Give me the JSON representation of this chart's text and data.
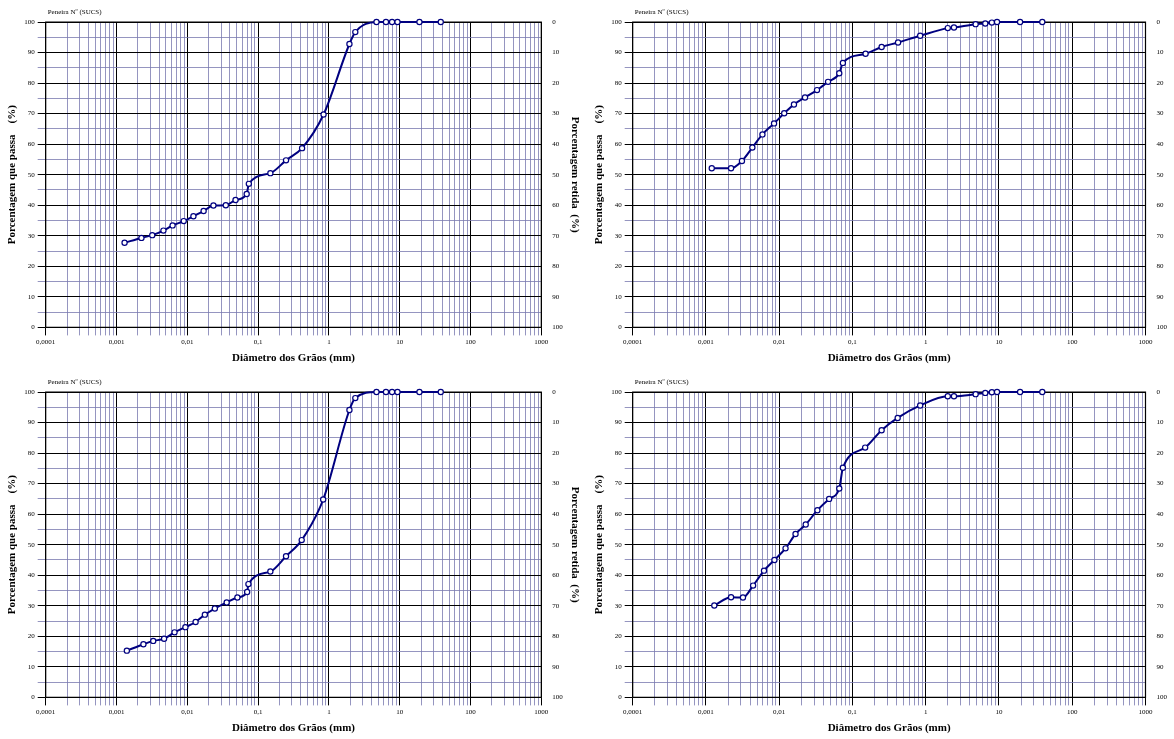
{
  "chart_data": [
    {
      "type": "line",
      "xlabel": "Diâmetro dos Grãos (mm)",
      "ylabel": "Porcentagem que passa    (%)",
      "y2label": "Porcentagem retida  (%)",
      "annotations": [
        "Peneira Nº (SUCS)"
      ],
      "log": "x",
      "grid": true,
      "legend": false,
      "marker": "circle",
      "line_style": "solid",
      "color": "#000080",
      "x": [
        0.0013,
        0.00225,
        0.0032,
        0.0046,
        0.0062,
        0.0089,
        0.0122,
        0.017,
        0.0234,
        0.035,
        0.048,
        0.069,
        0.074,
        0.149,
        0.248,
        0.418,
        0.84,
        1.95,
        2.36,
        4.7,
        6.4,
        7.8,
        9.3,
        19,
        38
      ],
      "values": [
        27.7,
        29.3,
        30.2,
        31.7,
        33.4,
        34.8,
        36.4,
        38.1,
        39.9,
        40.0,
        41.7,
        43.7,
        47.0,
        50.5,
        54.7,
        58.7,
        69.7,
        92.8,
        96.7,
        100,
        100,
        100,
        100,
        100,
        100
      ],
      "xlim": [
        0.0001,
        1000
      ],
      "ylim": [
        0,
        100
      ],
      "y2lim": [
        100,
        0
      ],
      "xticks": [
        {
          "value": 0.0001,
          "label": "0,0001"
        },
        {
          "value": 0.0002,
          "label": null
        },
        {
          "value": 0.0003,
          "label": null
        },
        {
          "value": 0.0004,
          "label": null
        },
        {
          "value": 0.0005,
          "label": null
        },
        {
          "value": 0.0006,
          "label": null
        },
        {
          "value": 0.0007,
          "label": null
        },
        {
          "value": 0.0008,
          "label": null
        },
        {
          "value": 0.0009,
          "label": null
        },
        {
          "value": 0.001,
          "label": "0,001"
        },
        {
          "value": 0.002,
          "label": null
        },
        {
          "value": 0.003,
          "label": null
        },
        {
          "value": 0.004,
          "label": null
        },
        {
          "value": 0.005,
          "label": null
        },
        {
          "value": 0.006,
          "label": null
        },
        {
          "value": 0.007,
          "label": null
        },
        {
          "value": 0.008,
          "label": null
        },
        {
          "value": 0.009,
          "label": null
        },
        {
          "value": 0.01,
          "label": "0,01"
        },
        {
          "value": 0.02,
          "label": null
        },
        {
          "value": 0.03,
          "label": null
        },
        {
          "value": 0.04,
          "label": null
        },
        {
          "value": 0.05,
          "label": null
        },
        {
          "value": 0.06,
          "label": null
        },
        {
          "value": 0.07,
          "label": null
        },
        {
          "value": 0.08,
          "label": null
        },
        {
          "value": 0.09,
          "label": null
        },
        {
          "value": 0.1,
          "label": "0,1"
        },
        {
          "value": 0.2,
          "label": null
        },
        {
          "value": 0.3,
          "label": null
        },
        {
          "value": 0.4,
          "label": null
        },
        {
          "value": 0.5,
          "label": null
        },
        {
          "value": 0.6,
          "label": null
        },
        {
          "value": 0.7,
          "label": null
        },
        {
          "value": 0.8,
          "label": null
        },
        {
          "value": 0.9,
          "label": null
        },
        1,
        {
          "value": 2,
          "label": null
        },
        {
          "value": 3,
          "label": null
        },
        {
          "value": 4,
          "label": null
        },
        {
          "value": 5,
          "label": null
        },
        {
          "value": 6,
          "label": null
        },
        {
          "value": 7,
          "label": null
        },
        {
          "value": 8,
          "label": null
        },
        {
          "value": 9,
          "label": null
        },
        10,
        {
          "value": 20,
          "label": null
        },
        {
          "value": 30,
          "label": null
        },
        {
          "value": 40,
          "label": null
        },
        {
          "value": 50,
          "label": null
        },
        {
          "value": 60,
          "label": null
        },
        {
          "value": 70,
          "label": null
        },
        {
          "value": 80,
          "label": null
        },
        {
          "value": 90,
          "label": null
        },
        100,
        {
          "value": 200,
          "label": null
        },
        {
          "value": 300,
          "label": null
        },
        {
          "value": 400,
          "label": null
        },
        {
          "value": 500,
          "label": null
        },
        {
          "value": 600,
          "label": null
        },
        {
          "value": 700,
          "label": null
        },
        {
          "value": 800,
          "label": null
        },
        {
          "value": 900,
          "label": null
        },
        1000
      ],
      "yticks": [
        0,
        {
          "value": 5,
          "label": null
        },
        10,
        {
          "value": 15,
          "label": null
        },
        20,
        {
          "value": 25,
          "label": null
        },
        30,
        {
          "value": 35,
          "label": null
        },
        40,
        {
          "value": 45,
          "label": null
        },
        50,
        {
          "value": 55,
          "label": null
        },
        60,
        {
          "value": 65,
          "label": null
        },
        70,
        {
          "value": 75,
          "label": null
        },
        80,
        {
          "value": 85,
          "label": null
        },
        90,
        {
          "value": 95,
          "label": null
        },
        100
      ],
      "y2ticks": [
        0,
        10,
        20,
        30,
        40,
        50,
        60,
        70,
        80,
        90,
        100
      ]
    },
    {
      "type": "line",
      "xlabel": "Diâmetro dos Grãos (mm)",
      "ylabel": "Porcentagem que passa    (%)",
      "annotations": [
        "Peneira Nº (SUCS)"
      ],
      "log": "x",
      "grid": true,
      "legend": false,
      "marker": "circle",
      "line_style": "solid",
      "color": "#000080",
      "x": [
        0.0012,
        0.0022,
        0.0031,
        0.0043,
        0.0059,
        0.0085,
        0.0117,
        0.0159,
        0.0225,
        0.0328,
        0.0464,
        0.066,
        0.074,
        0.151,
        0.25,
        0.419,
        0.84,
        2.0,
        2.43,
        4.8,
        6.5,
        8.0,
        9.4,
        19.4,
        39
      ],
      "values": [
        52.1,
        52.1,
        54.5,
        58.9,
        63.2,
        66.8,
        70.1,
        73.0,
        75.3,
        77.7,
        80.4,
        83.2,
        86.6,
        89.6,
        91.8,
        93.3,
        95.5,
        98.0,
        98.2,
        99.3,
        99.5,
        99.8,
        100,
        100,
        100
      ],
      "xlim": [
        0.0001,
        1000
      ],
      "ylim": [
        0,
        100
      ],
      "y2lim": [
        100,
        0
      ],
      "xticks": [
        {
          "value": 0.0001,
          "label": "0,0001"
        },
        {
          "value": 0.0002,
          "label": null
        },
        {
          "value": 0.0003,
          "label": null
        },
        {
          "value": 0.0004,
          "label": null
        },
        {
          "value": 0.0005,
          "label": null
        },
        {
          "value": 0.0006,
          "label": null
        },
        {
          "value": 0.0007,
          "label": null
        },
        {
          "value": 0.0008,
          "label": null
        },
        {
          "value": 0.0009,
          "label": null
        },
        {
          "value": 0.001,
          "label": "0,001"
        },
        {
          "value": 0.002,
          "label": null
        },
        {
          "value": 0.003,
          "label": null
        },
        {
          "value": 0.004,
          "label": null
        },
        {
          "value": 0.005,
          "label": null
        },
        {
          "value": 0.006,
          "label": null
        },
        {
          "value": 0.007,
          "label": null
        },
        {
          "value": 0.008,
          "label": null
        },
        {
          "value": 0.009,
          "label": null
        },
        {
          "value": 0.01,
          "label": "0,01"
        },
        {
          "value": 0.02,
          "label": null
        },
        {
          "value": 0.03,
          "label": null
        },
        {
          "value": 0.04,
          "label": null
        },
        {
          "value": 0.05,
          "label": null
        },
        {
          "value": 0.06,
          "label": null
        },
        {
          "value": 0.07,
          "label": null
        },
        {
          "value": 0.08,
          "label": null
        },
        {
          "value": 0.09,
          "label": null
        },
        {
          "value": 0.1,
          "label": "0,1"
        },
        {
          "value": 0.2,
          "label": null
        },
        {
          "value": 0.3,
          "label": null
        },
        {
          "value": 0.4,
          "label": null
        },
        {
          "value": 0.5,
          "label": null
        },
        {
          "value": 0.6,
          "label": null
        },
        {
          "value": 0.7,
          "label": null
        },
        {
          "value": 0.8,
          "label": null
        },
        {
          "value": 0.9,
          "label": null
        },
        1,
        {
          "value": 2,
          "label": null
        },
        {
          "value": 3,
          "label": null
        },
        {
          "value": 4,
          "label": null
        },
        {
          "value": 5,
          "label": null
        },
        {
          "value": 6,
          "label": null
        },
        {
          "value": 7,
          "label": null
        },
        {
          "value": 8,
          "label": null
        },
        {
          "value": 9,
          "label": null
        },
        10,
        {
          "value": 20,
          "label": null
        },
        {
          "value": 30,
          "label": null
        },
        {
          "value": 40,
          "label": null
        },
        {
          "value": 50,
          "label": null
        },
        {
          "value": 60,
          "label": null
        },
        {
          "value": 70,
          "label": null
        },
        {
          "value": 80,
          "label": null
        },
        {
          "value": 90,
          "label": null
        },
        100,
        {
          "value": 200,
          "label": null
        },
        {
          "value": 300,
          "label": null
        },
        {
          "value": 400,
          "label": null
        },
        {
          "value": 500,
          "label": null
        },
        {
          "value": 600,
          "label": null
        },
        {
          "value": 700,
          "label": null
        },
        {
          "value": 800,
          "label": null
        },
        {
          "value": 900,
          "label": null
        },
        1000
      ],
      "yticks": [
        0,
        {
          "value": 5,
          "label": null
        },
        10,
        {
          "value": 15,
          "label": null
        },
        20,
        {
          "value": 25,
          "label": null
        },
        30,
        {
          "value": 35,
          "label": null
        },
        40,
        {
          "value": 45,
          "label": null
        },
        50,
        {
          "value": 55,
          "label": null
        },
        60,
        {
          "value": 65,
          "label": null
        },
        70,
        {
          "value": 75,
          "label": null
        },
        80,
        {
          "value": 85,
          "label": null
        },
        90,
        {
          "value": 95,
          "label": null
        },
        100
      ],
      "y2ticks": [
        0,
        10,
        20,
        30,
        40,
        50,
        60,
        70,
        80,
        90,
        100
      ]
    },
    {
      "type": "line",
      "xlabel": "Diâmetro dos Grãos (mm)",
      "ylabel": "Porcentagem que passa    (%)",
      "y2label": "Porcentagem retida  (%)",
      "annotations": [
        "Peneira Nº (SUCS)"
      ],
      "log": "x",
      "grid": true,
      "legend": false,
      "marker": "circle",
      "line_style": "solid",
      "color": "#000080",
      "x": [
        0.0014,
        0.0024,
        0.0033,
        0.0047,
        0.0066,
        0.0094,
        0.0131,
        0.0177,
        0.0245,
        0.036,
        0.051,
        0.07,
        0.073,
        0.149,
        0.248,
        0.413,
        0.83,
        1.95,
        2.36,
        4.7,
        6.4,
        7.8,
        9.3,
        19,
        38
      ],
      "values": [
        15.3,
        17.4,
        18.5,
        19.2,
        21.3,
        23.0,
        24.7,
        27.1,
        29.1,
        31.1,
        32.7,
        34.5,
        37.1,
        41.2,
        46.2,
        51.5,
        64.8,
        94.1,
        98.0,
        100,
        100,
        100,
        100,
        100,
        100
      ],
      "xlim": [
        0.0001,
        1000
      ],
      "ylim": [
        0,
        100
      ],
      "y2lim": [
        100,
        0
      ],
      "xticks": [
        {
          "value": 0.0001,
          "label": "0,0001"
        },
        {
          "value": 0.0002,
          "label": null
        },
        {
          "value": 0.0003,
          "label": null
        },
        {
          "value": 0.0004,
          "label": null
        },
        {
          "value": 0.0005,
          "label": null
        },
        {
          "value": 0.0006,
          "label": null
        },
        {
          "value": 0.0007,
          "label": null
        },
        {
          "value": 0.0008,
          "label": null
        },
        {
          "value": 0.0009,
          "label": null
        },
        {
          "value": 0.001,
          "label": "0,001"
        },
        {
          "value": 0.002,
          "label": null
        },
        {
          "value": 0.003,
          "label": null
        },
        {
          "value": 0.004,
          "label": null
        },
        {
          "value": 0.005,
          "label": null
        },
        {
          "value": 0.006,
          "label": null
        },
        {
          "value": 0.007,
          "label": null
        },
        {
          "value": 0.008,
          "label": null
        },
        {
          "value": 0.009,
          "label": null
        },
        {
          "value": 0.01,
          "label": "0,01"
        },
        {
          "value": 0.02,
          "label": null
        },
        {
          "value": 0.03,
          "label": null
        },
        {
          "value": 0.04,
          "label": null
        },
        {
          "value": 0.05,
          "label": null
        },
        {
          "value": 0.06,
          "label": null
        },
        {
          "value": 0.07,
          "label": null
        },
        {
          "value": 0.08,
          "label": null
        },
        {
          "value": 0.09,
          "label": null
        },
        {
          "value": 0.1,
          "label": "0,1"
        },
        {
          "value": 0.2,
          "label": null
        },
        {
          "value": 0.3,
          "label": null
        },
        {
          "value": 0.4,
          "label": null
        },
        {
          "value": 0.5,
          "label": null
        },
        {
          "value": 0.6,
          "label": null
        },
        {
          "value": 0.7,
          "label": null
        },
        {
          "value": 0.8,
          "label": null
        },
        {
          "value": 0.9,
          "label": null
        },
        1,
        {
          "value": 2,
          "label": null
        },
        {
          "value": 3,
          "label": null
        },
        {
          "value": 4,
          "label": null
        },
        {
          "value": 5,
          "label": null
        },
        {
          "value": 6,
          "label": null
        },
        {
          "value": 7,
          "label": null
        },
        {
          "value": 8,
          "label": null
        },
        {
          "value": 9,
          "label": null
        },
        10,
        {
          "value": 20,
          "label": null
        },
        {
          "value": 30,
          "label": null
        },
        {
          "value": 40,
          "label": null
        },
        {
          "value": 50,
          "label": null
        },
        {
          "value": 60,
          "label": null
        },
        {
          "value": 70,
          "label": null
        },
        {
          "value": 80,
          "label": null
        },
        {
          "value": 90,
          "label": null
        },
        100,
        {
          "value": 200,
          "label": null
        },
        {
          "value": 300,
          "label": null
        },
        {
          "value": 400,
          "label": null
        },
        {
          "value": 500,
          "label": null
        },
        {
          "value": 600,
          "label": null
        },
        {
          "value": 700,
          "label": null
        },
        {
          "value": 800,
          "label": null
        },
        {
          "value": 900,
          "label": null
        },
        1000
      ],
      "yticks": [
        0,
        {
          "value": 5,
          "label": null
        },
        10,
        {
          "value": 15,
          "label": null
        },
        20,
        {
          "value": 25,
          "label": null
        },
        30,
        {
          "value": 35,
          "label": null
        },
        40,
        {
          "value": 45,
          "label": null
        },
        50,
        {
          "value": 55,
          "label": null
        },
        60,
        {
          "value": 65,
          "label": null
        },
        70,
        {
          "value": 75,
          "label": null
        },
        80,
        {
          "value": 85,
          "label": null
        },
        90,
        {
          "value": 95,
          "label": null
        },
        100
      ],
      "y2ticks": [
        0,
        10,
        20,
        30,
        40,
        50,
        60,
        70,
        80,
        90,
        100
      ]
    },
    {
      "type": "line",
      "xlabel": "Diâmetro dos Grãos (mm)",
      "ylabel": "Porcentagem que passa    (%)",
      "annotations": [
        "Peneira Nº (SUCS)"
      ],
      "log": "x",
      "grid": true,
      "legend": false,
      "marker": "circle",
      "line_style": "solid",
      "color": "#000080",
      "x": [
        0.0013,
        0.0022,
        0.0032,
        0.0044,
        0.0062,
        0.0086,
        0.0122,
        0.0167,
        0.023,
        0.0332,
        0.048,
        0.066,
        0.074,
        0.149,
        0.25,
        0.414,
        0.84,
        2.0,
        2.43,
        4.8,
        6.5,
        8.0,
        9.4,
        19.4,
        39
      ],
      "values": [
        30.1,
        32.8,
        32.7,
        36.6,
        41.5,
        45.0,
        48.8,
        53.5,
        56.6,
        61.3,
        65.0,
        68.4,
        75.2,
        81.8,
        87.5,
        91.5,
        95.6,
        98.6,
        98.6,
        99.3,
        99.7,
        99.9,
        100,
        100,
        100
      ],
      "xlim": [
        0.0001,
        1000
      ],
      "ylim": [
        0,
        100
      ],
      "y2lim": [
        100,
        0
      ],
      "xticks": [
        {
          "value": 0.0001,
          "label": "0,0001"
        },
        {
          "value": 0.0002,
          "label": null
        },
        {
          "value": 0.0003,
          "label": null
        },
        {
          "value": 0.0004,
          "label": null
        },
        {
          "value": 0.0005,
          "label": null
        },
        {
          "value": 0.0006,
          "label": null
        },
        {
          "value": 0.0007,
          "label": null
        },
        {
          "value": 0.0008,
          "label": null
        },
        {
          "value": 0.0009,
          "label": null
        },
        {
          "value": 0.001,
          "label": "0,001"
        },
        {
          "value": 0.002,
          "label": null
        },
        {
          "value": 0.003,
          "label": null
        },
        {
          "value": 0.004,
          "label": null
        },
        {
          "value": 0.005,
          "label": null
        },
        {
          "value": 0.006,
          "label": null
        },
        {
          "value": 0.007,
          "label": null
        },
        {
          "value": 0.008,
          "label": null
        },
        {
          "value": 0.009,
          "label": null
        },
        {
          "value": 0.01,
          "label": "0,01"
        },
        {
          "value": 0.02,
          "label": null
        },
        {
          "value": 0.03,
          "label": null
        },
        {
          "value": 0.04,
          "label": null
        },
        {
          "value": 0.05,
          "label": null
        },
        {
          "value": 0.06,
          "label": null
        },
        {
          "value": 0.07,
          "label": null
        },
        {
          "value": 0.08,
          "label": null
        },
        {
          "value": 0.09,
          "label": null
        },
        {
          "value": 0.1,
          "label": "0,1"
        },
        {
          "value": 0.2,
          "label": null
        },
        {
          "value": 0.3,
          "label": null
        },
        {
          "value": 0.4,
          "label": null
        },
        {
          "value": 0.5,
          "label": null
        },
        {
          "value": 0.6,
          "label": null
        },
        {
          "value": 0.7,
          "label": null
        },
        {
          "value": 0.8,
          "label": null
        },
        {
          "value": 0.9,
          "label": null
        },
        1,
        {
          "value": 2,
          "label": null
        },
        {
          "value": 3,
          "label": null
        },
        {
          "value": 4,
          "label": null
        },
        {
          "value": 5,
          "label": null
        },
        {
          "value": 6,
          "label": null
        },
        {
          "value": 7,
          "label": null
        },
        {
          "value": 8,
          "label": null
        },
        {
          "value": 9,
          "label": null
        },
        10,
        {
          "value": 20,
          "label": null
        },
        {
          "value": 30,
          "label": null
        },
        {
          "value": 40,
          "label": null
        },
        {
          "value": 50,
          "label": null
        },
        {
          "value": 60,
          "label": null
        },
        {
          "value": 70,
          "label": null
        },
        {
          "value": 80,
          "label": null
        },
        {
          "value": 90,
          "label": null
        },
        100,
        {
          "value": 200,
          "label": null
        },
        {
          "value": 300,
          "label": null
        },
        {
          "value": 400,
          "label": null
        },
        {
          "value": 500,
          "label": null
        },
        {
          "value": 600,
          "label": null
        },
        {
          "value": 700,
          "label": null
        },
        {
          "value": 800,
          "label": null
        },
        {
          "value": 900,
          "label": null
        },
        1000
      ],
      "yticks": [
        0,
        {
          "value": 5,
          "label": null
        },
        10,
        {
          "value": 15,
          "label": null
        },
        20,
        {
          "value": 25,
          "label": null
        },
        30,
        {
          "value": 35,
          "label": null
        },
        40,
        {
          "value": 45,
          "label": null
        },
        50,
        {
          "value": 55,
          "label": null
        },
        60,
        {
          "value": 65,
          "label": null
        },
        70,
        {
          "value": 75,
          "label": null
        },
        80,
        {
          "value": 85,
          "label": null
        },
        90,
        {
          "value": 95,
          "label": null
        },
        100
      ],
      "y2ticks": [
        0,
        10,
        20,
        30,
        40,
        50,
        60,
        70,
        80,
        90,
        100
      ]
    }
  ]
}
